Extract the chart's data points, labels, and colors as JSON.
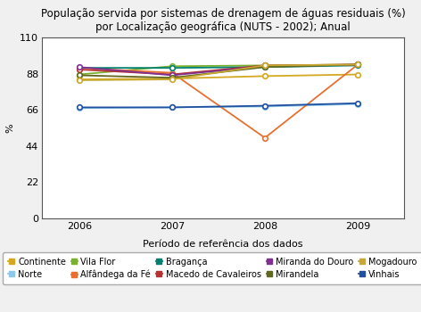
{
  "title": "População servida por sistemas de drenagem de águas residuais (%)\npor Localização geográfica (NUTS - 2002); Anual",
  "xlabel": "Período de referência dos dados",
  "ylabel": "%",
  "years": [
    2006,
    2007,
    2008,
    2009
  ],
  "ylim": [
    0,
    110
  ],
  "yticks": [
    0,
    22,
    44,
    66,
    88,
    110
  ],
  "series": [
    {
      "label": "Continente",
      "color": "#D4A820",
      "data": [
        84.5,
        85.0,
        86.5,
        87.5
      ]
    },
    {
      "label": "Norte",
      "color": "#90C8E8",
      "data": [
        67.0,
        67.5,
        68.0,
        69.5
      ]
    },
    {
      "label": "Vila Flor",
      "color": "#7AB030",
      "data": [
        87.5,
        92.5,
        93.0,
        93.5
      ]
    },
    {
      "label": "Alfândega da Fé",
      "color": "#E87030",
      "data": [
        91.5,
        88.5,
        49.0,
        93.5
      ]
    },
    {
      "label": "Bragança",
      "color": "#008070",
      "data": [
        91.5,
        91.5,
        92.0,
        93.0
      ]
    },
    {
      "label": "Macedo de Cavaleiros",
      "color": "#B83030",
      "data": [
        90.5,
        87.5,
        93.0,
        93.5
      ]
    },
    {
      "label": "Miranda do Douro",
      "color": "#803090",
      "data": [
        92.0,
        87.0,
        92.5,
        93.5
      ]
    },
    {
      "label": "Mirandela",
      "color": "#606820",
      "data": [
        87.0,
        85.5,
        92.0,
        93.5
      ]
    },
    {
      "label": "Mogadouro",
      "color": "#C8A830",
      "data": [
        84.0,
        84.5,
        93.0,
        93.5
      ]
    },
    {
      "label": "Vinhais",
      "color": "#2050A0",
      "data": [
        67.5,
        67.5,
        68.5,
        70.0
      ]
    }
  ],
  "legend_order": [
    "Continente",
    "Norte",
    "Vila Flor",
    "Alfândega da Fé",
    "Bragança",
    "Macedo de Cavaleiros",
    "Miranda do Douro",
    "Mirandela",
    "Mogadouro",
    "Vinhais"
  ],
  "background_color": "#f0f0f0",
  "plot_bg_color": "#ffffff",
  "title_fontsize": 8.5,
  "axis_fontsize": 8,
  "tick_fontsize": 8,
  "legend_fontsize": 7
}
